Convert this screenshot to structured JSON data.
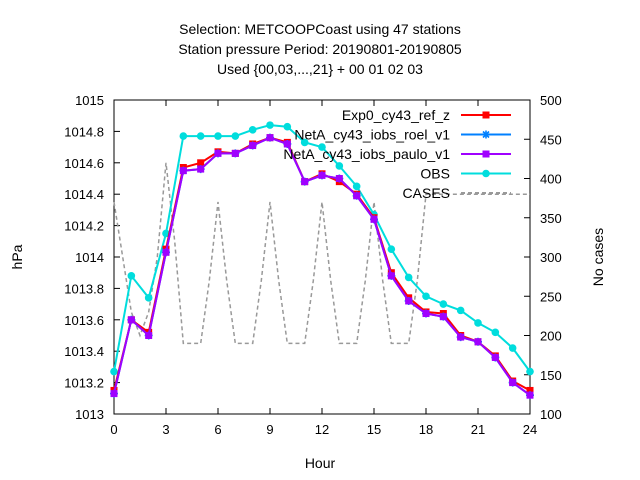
{
  "chart_data": {
    "type": "line",
    "title_lines": [
      "Selection: METCOOPCoast using    47 stations",
      "Station pressure   Period: 20190801-20190805",
      "Used {00,03,...,21} + 00 01 02 03"
    ],
    "xlabel": "Hour",
    "ylabel": "hPa",
    "y2label": "No cases",
    "xlim": [
      0,
      24
    ],
    "ylim": [
      1013,
      1015
    ],
    "y2lim": [
      100,
      500
    ],
    "xticks": [
      0,
      3,
      6,
      9,
      12,
      15,
      18,
      21,
      24
    ],
    "yticks": [
      1013,
      1013.2,
      1013.4,
      1013.6,
      1013.8,
      1014,
      1014.2,
      1014.4,
      1014.6,
      1014.8,
      1015
    ],
    "ytick_labels": [
      "1013",
      "1013.2",
      "1013.4",
      "1013.6",
      "1013.8",
      "1014",
      "1014.2",
      "1014.4",
      "1014.6",
      "1014.8",
      "1015"
    ],
    "y2ticks": [
      100,
      150,
      200,
      250,
      300,
      350,
      400,
      450,
      500
    ],
    "legend_position": "top-right",
    "grid": false,
    "x": [
      0,
      1,
      2,
      3,
      4,
      5,
      6,
      7,
      8,
      9,
      10,
      11,
      12,
      13,
      14,
      15,
      16,
      17,
      18,
      19,
      20,
      21,
      22,
      23,
      24
    ],
    "series": [
      {
        "name": "Exp0_cy43_ref_z",
        "color": "#ff0000",
        "axis": "left",
        "marker": "square",
        "values": [
          1013.15,
          1013.6,
          1013.52,
          1014.05,
          1014.57,
          1014.6,
          1014.67,
          1014.66,
          1014.72,
          1014.76,
          1014.73,
          1014.48,
          1014.53,
          1014.48,
          1014.4,
          1014.25,
          1013.9,
          1013.74,
          1013.65,
          1013.64,
          1013.5,
          1013.46,
          1013.37,
          1013.21,
          1013.15
        ]
      },
      {
        "name": "NetA_cy43_iobs_roel_v1",
        "color": "#0080ff",
        "axis": "left",
        "marker": "star",
        "values": [
          1013.13,
          1013.6,
          1013.5,
          1014.03,
          1014.55,
          1014.56,
          1014.66,
          1014.66,
          1014.71,
          1014.76,
          1014.72,
          1014.48,
          1014.52,
          1014.5,
          1014.39,
          1014.24,
          1013.88,
          1013.72,
          1013.64,
          1013.62,
          1013.49,
          1013.46,
          1013.36,
          1013.2,
          1013.12
        ]
      },
      {
        "name": "NetA_cy43_iobs_paulo_v1",
        "color": "#a000ff",
        "axis": "left",
        "marker": "square",
        "values": [
          1013.13,
          1013.6,
          1013.5,
          1014.03,
          1014.55,
          1014.56,
          1014.66,
          1014.66,
          1014.71,
          1014.76,
          1014.72,
          1014.48,
          1014.52,
          1014.5,
          1014.39,
          1014.24,
          1013.88,
          1013.72,
          1013.64,
          1013.62,
          1013.49,
          1013.46,
          1013.36,
          1013.2,
          1013.12
        ]
      },
      {
        "name": "OBS",
        "color": "#00dddd",
        "axis": "left",
        "marker": "circle",
        "values": [
          1013.27,
          1013.88,
          1013.74,
          1014.15,
          1014.77,
          1014.77,
          1014.77,
          1014.77,
          1014.81,
          1014.84,
          1014.83,
          1014.73,
          1014.7,
          1014.58,
          1014.45,
          1014.27,
          1014.05,
          1013.87,
          1013.75,
          1013.7,
          1013.66,
          1013.58,
          1013.52,
          1013.42,
          1013.27
        ]
      },
      {
        "name": "CASES",
        "color": "#999999",
        "axis": "right",
        "marker": "none",
        "dashed": true,
        "x": [
          0,
          0.5,
          1,
          1.5,
          2,
          2.5,
          3,
          3.5,
          4,
          4.5,
          5,
          5.5,
          6,
          6.5,
          7,
          7.5,
          8,
          8.5,
          9,
          9.5,
          10,
          10.5,
          11,
          11.5,
          12,
          12.5,
          13,
          13.5,
          14,
          14.5,
          15,
          15.5,
          16,
          16.5,
          17,
          17.5,
          18,
          18.5,
          19,
          19.5,
          20,
          20.5,
          21,
          21.5,
          22,
          22.5,
          23,
          23.5,
          24
        ],
        "values": [
          370,
          300,
          230,
          200,
          230,
          300,
          420,
          320,
          190,
          190,
          190,
          270,
          370,
          270,
          190,
          190,
          190,
          270,
          370,
          270,
          190,
          190,
          190,
          270,
          370,
          270,
          190,
          190,
          190,
          270,
          370,
          270,
          190,
          190,
          190,
          270,
          380,
          380,
          380,
          380,
          380,
          380,
          380,
          380,
          380,
          380,
          380,
          380,
          380
        ]
      }
    ]
  }
}
